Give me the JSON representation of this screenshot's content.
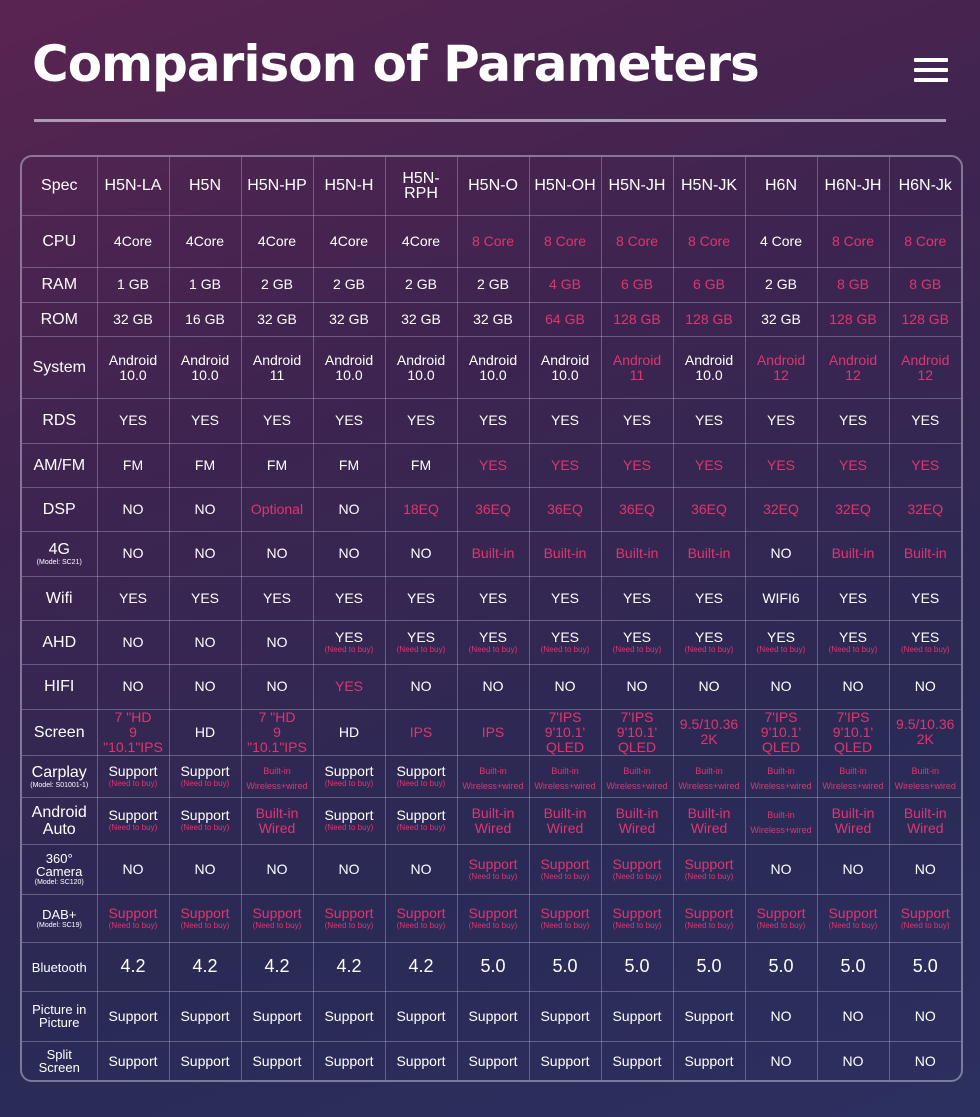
{
  "title": "Comparison of Parameters",
  "menu_icon": "hamburger-menu-icon",
  "colors": {
    "highlight": "#e0356f",
    "text": "#ffffff"
  },
  "models": [
    "H5N-LA",
    "H5N",
    "H5N-HP",
    "H5N-H",
    "H5N-RPH",
    "H5N-O",
    "H5N-OH",
    "H5N-JH",
    "H5N-JK",
    "H6N",
    "H6N-JH",
    "H6N-Jk"
  ],
  "rows": [
    {
      "label": "Spec",
      "header": true
    },
    {
      "label": "CPU",
      "cells": [
        [
          "4Core"
        ],
        [
          "4Core"
        ],
        [
          "4Core"
        ],
        [
          "4Core"
        ],
        [
          "4Core"
        ],
        [
          "8 Core",
          1
        ],
        [
          "8 Core",
          1
        ],
        [
          "8 Core",
          1
        ],
        [
          "8 Core",
          1
        ],
        [
          "4 Core"
        ],
        [
          "8 Core",
          1
        ],
        [
          "8 Core",
          1
        ]
      ]
    },
    {
      "label": "RAM",
      "cells": [
        [
          "1 GB"
        ],
        [
          "1 GB"
        ],
        [
          "2 GB"
        ],
        [
          "2 GB"
        ],
        [
          "2 GB"
        ],
        [
          "2 GB"
        ],
        [
          "4 GB",
          1
        ],
        [
          "6 GB",
          1
        ],
        [
          "6 GB",
          1
        ],
        [
          "2 GB"
        ],
        [
          "8 GB",
          1
        ],
        [
          "8 GB",
          1
        ]
      ]
    },
    {
      "label": "ROM",
      "cells": [
        [
          "32 GB"
        ],
        [
          "16 GB"
        ],
        [
          "32 GB"
        ],
        [
          "32 GB"
        ],
        [
          "32 GB"
        ],
        [
          "32 GB"
        ],
        [
          "64 GB",
          1
        ],
        [
          "128 GB",
          1
        ],
        [
          "128 GB",
          1
        ],
        [
          "32 GB"
        ],
        [
          "128 GB",
          1
        ],
        [
          "128 GB",
          1
        ]
      ]
    },
    {
      "label": "System",
      "cells": [
        [
          "Android\n10.0"
        ],
        [
          "Android\n10.0"
        ],
        [
          "Android\n11"
        ],
        [
          "Android\n10.0"
        ],
        [
          "Android\n10.0"
        ],
        [
          "Android\n10.0"
        ],
        [
          "Android\n10.0"
        ],
        [
          "Android\n11",
          1
        ],
        [
          "Android\n10.0"
        ],
        [
          "Android\n12",
          1
        ],
        [
          "Android\n12",
          1
        ],
        [
          "Android\n12",
          1
        ]
      ]
    },
    {
      "label": "RDS",
      "cells": [
        [
          "YES"
        ],
        [
          "YES"
        ],
        [
          "YES"
        ],
        [
          "YES"
        ],
        [
          "YES"
        ],
        [
          "YES"
        ],
        [
          "YES"
        ],
        [
          "YES"
        ],
        [
          "YES"
        ],
        [
          "YES"
        ],
        [
          "YES"
        ],
        [
          "YES"
        ]
      ]
    },
    {
      "label": "AM/FM",
      "cells": [
        [
          "FM"
        ],
        [
          "FM"
        ],
        [
          "FM"
        ],
        [
          "FM"
        ],
        [
          "FM"
        ],
        [
          "YES",
          1
        ],
        [
          "YES",
          1
        ],
        [
          "YES",
          1
        ],
        [
          "YES",
          1
        ],
        [
          "YES",
          1
        ],
        [
          "YES",
          1
        ],
        [
          "YES",
          1
        ]
      ]
    },
    {
      "label": "DSP",
      "cells": [
        [
          "NO"
        ],
        [
          "NO"
        ],
        [
          "Optional",
          1
        ],
        [
          "NO"
        ],
        [
          "18EQ",
          1
        ],
        [
          "36EQ",
          1
        ],
        [
          "36EQ",
          1
        ],
        [
          "36EQ",
          1
        ],
        [
          "36EQ",
          1
        ],
        [
          "32EQ",
          1
        ],
        [
          "32EQ",
          1
        ],
        [
          "32EQ",
          1
        ]
      ]
    },
    {
      "label": "4G",
      "sublabel": "(Model: SC21)",
      "cells": [
        [
          "NO"
        ],
        [
          "NO"
        ],
        [
          "NO"
        ],
        [
          "NO"
        ],
        [
          "NO"
        ],
        [
          "Built-in",
          1
        ],
        [
          "Built-in",
          1
        ],
        [
          "Built-in",
          1
        ],
        [
          "Built-in",
          1
        ],
        [
          "NO"
        ],
        [
          "Built-in",
          1
        ],
        [
          "Built-in",
          1
        ]
      ]
    },
    {
      "label": "Wifi",
      "cells": [
        [
          "YES"
        ],
        [
          "YES"
        ],
        [
          "YES"
        ],
        [
          "YES"
        ],
        [
          "YES"
        ],
        [
          "YES"
        ],
        [
          "YES"
        ],
        [
          "YES"
        ],
        [
          "YES"
        ],
        [
          "WIFI6"
        ],
        [
          "YES"
        ],
        [
          "YES"
        ]
      ]
    },
    {
      "label": "AHD",
      "cells": [
        [
          "NO"
        ],
        [
          "NO"
        ],
        [
          "NO"
        ],
        [
          "YES",
          "",
          "(Need to buy)"
        ],
        [
          "YES",
          "",
          "(Need to buy)"
        ],
        [
          "YES",
          "",
          "(Need to buy)"
        ],
        [
          "YES",
          "",
          "(Need to buy)"
        ],
        [
          "YES",
          "",
          "(Need to buy)"
        ],
        [
          "YES",
          "",
          "(Need to buy)"
        ],
        [
          "YES",
          "",
          "(Need to buy)"
        ],
        [
          "YES",
          "",
          "(Need to buy)"
        ],
        [
          "YES",
          "",
          "(Need to buy)"
        ]
      ]
    },
    {
      "label": "HIFI",
      "cells": [
        [
          "NO"
        ],
        [
          "NO"
        ],
        [
          "NO"
        ],
        [
          "YES",
          1
        ],
        [
          "NO"
        ],
        [
          "NO"
        ],
        [
          "NO"
        ],
        [
          "NO"
        ],
        [
          "NO"
        ],
        [
          "NO"
        ],
        [
          "NO"
        ],
        [
          "NO"
        ]
      ]
    },
    {
      "label": "Screen",
      "cells": [
        [
          "7 \"HD\n9 \"10.1\"IPS",
          1
        ],
        [
          "HD"
        ],
        [
          "7 \"HD\n9 \"10.1\"IPS",
          1
        ],
        [
          "HD"
        ],
        [
          "IPS",
          1
        ],
        [
          "IPS",
          1
        ],
        [
          "7'IPS\n9'10.1' QLED",
          1
        ],
        [
          "7'IPS\n9'10.1' QLED",
          1
        ],
        [
          "9.5/10.36\n2K",
          1
        ],
        [
          "7'IPS\n9'10.1' QLED",
          1
        ],
        [
          "7'IPS\n9'10.1' QLED",
          1
        ],
        [
          "9.5/10.36\n2K",
          1
        ]
      ]
    },
    {
      "label": "Carplay",
      "sublabel": "(Model: S01001-1)",
      "cells": [
        [
          "Support",
          "",
          "(Need to buy)"
        ],
        [
          "Support",
          "",
          "(Need to buy)"
        ],
        [
          "Built-in\nWireless+wired",
          1,
          "",
          1
        ],
        [
          "Support",
          "",
          "(Need to buy)"
        ],
        [
          "Support",
          "",
          "(Need to buy)"
        ],
        [
          "Built-in\nWireless+wired",
          1,
          "",
          1
        ],
        [
          "Built-in\nWireless+wired",
          1,
          "",
          1
        ],
        [
          "Built-in\nWireless+wired",
          1,
          "",
          1
        ],
        [
          "Built-in\nWireless+wired",
          1,
          "",
          1
        ],
        [
          "Built-in\nWireless+wired",
          1,
          "",
          1
        ],
        [
          "Built-in\nWireless+wired",
          1,
          "",
          1
        ],
        [
          "Built-in\nWireless+wired",
          1,
          "",
          1
        ]
      ]
    },
    {
      "label": "Android\nAuto",
      "cells": [
        [
          "Support",
          "",
          "(Need to buy)"
        ],
        [
          "Support",
          "",
          "(Need to buy)"
        ],
        [
          "Built-in\nWired",
          1
        ],
        [
          "Support",
          "",
          "(Need to buy)"
        ],
        [
          "Support",
          "",
          "(Need to buy)"
        ],
        [
          "Built-in\nWired",
          1
        ],
        [
          "Built-in\nWired",
          1
        ],
        [
          "Built-in\nWired",
          1
        ],
        [
          "Built-in\nWired",
          1
        ],
        [
          "Built-in\nWireless+wired",
          1,
          "",
          1
        ],
        [
          "Built-in\nWired",
          1
        ],
        [
          "Built-in\nWired",
          1
        ]
      ]
    },
    {
      "label": "360°\nCamera",
      "sublabel": "(Model: SC120)",
      "small": true,
      "cells": [
        [
          "NO"
        ],
        [
          "NO"
        ],
        [
          "NO"
        ],
        [
          "NO"
        ],
        [
          "NO"
        ],
        [
          "Support",
          1,
          "(Need to buy)"
        ],
        [
          "Support",
          1,
          "(Need to buy)"
        ],
        [
          "Support",
          1,
          "(Need to buy)"
        ],
        [
          "Support",
          1,
          "(Need to buy)"
        ],
        [
          "NO"
        ],
        [
          "NO"
        ],
        [
          "NO"
        ]
      ]
    },
    {
      "label": "DAB+",
      "sublabel": "(Model: SC19)",
      "small": true,
      "cells": [
        [
          "Support",
          1,
          "(Need to buy)"
        ],
        [
          "Support",
          1,
          "(Need to buy)"
        ],
        [
          "Support",
          1,
          "(Need to buy)"
        ],
        [
          "Support",
          1,
          "(Need to buy)"
        ],
        [
          "Support",
          1,
          "(Need to buy)"
        ],
        [
          "Support",
          1,
          "(Need to buy)"
        ],
        [
          "Support",
          1,
          "(Need to buy)"
        ],
        [
          "Support",
          1,
          "(Need to buy)"
        ],
        [
          "Support",
          1,
          "(Need to buy)"
        ],
        [
          "Support",
          1,
          "(Need to buy)"
        ],
        [
          "Support",
          1,
          "(Need to buy)"
        ],
        [
          "Support",
          1,
          "(Need to buy)"
        ]
      ]
    },
    {
      "label": "Bluetooth",
      "small": true,
      "big": true,
      "cells": [
        [
          "4.2"
        ],
        [
          "4.2"
        ],
        [
          "4.2"
        ],
        [
          "4.2"
        ],
        [
          "4.2"
        ],
        [
          "5.0"
        ],
        [
          "5.0"
        ],
        [
          "5.0"
        ],
        [
          "5.0"
        ],
        [
          "5.0"
        ],
        [
          "5.0"
        ],
        [
          "5.0"
        ]
      ]
    },
    {
      "label": "Picture in\nPicture",
      "small": true,
      "cells": [
        [
          "Support"
        ],
        [
          "Support"
        ],
        [
          "Support"
        ],
        [
          "Support"
        ],
        [
          "Support"
        ],
        [
          "Support"
        ],
        [
          "Support"
        ],
        [
          "Support"
        ],
        [
          "Support"
        ],
        [
          "NO"
        ],
        [
          "NO"
        ],
        [
          "NO"
        ]
      ]
    },
    {
      "label": "Split\nScreen",
      "small": true,
      "cells": [
        [
          "Support"
        ],
        [
          "Support"
        ],
        [
          "Support"
        ],
        [
          "Support"
        ],
        [
          "Support"
        ],
        [
          "Support"
        ],
        [
          "Support"
        ],
        [
          "Support"
        ],
        [
          "Support"
        ],
        [
          "NO"
        ],
        [
          "NO"
        ],
        [
          "NO"
        ]
      ]
    }
  ]
}
